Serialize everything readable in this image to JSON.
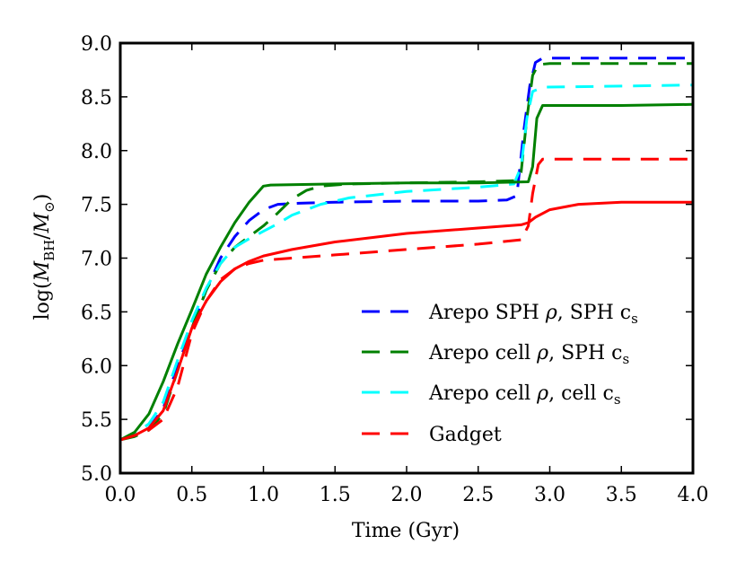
{
  "chart_data": {
    "type": "line",
    "xlabel": "Time (Gyr)",
    "ylabel_parts": {
      "pre": "log(",
      "m": "M",
      "sub1": "BH",
      "slash": "/",
      "m2": "M",
      "sub2": "⊙",
      "post": ")"
    },
    "xlim": [
      0.0,
      4.0
    ],
    "ylim": [
      5.0,
      9.0
    ],
    "xticks": [
      "0.0",
      "0.5",
      "1.0",
      "1.5",
      "2.0",
      "2.5",
      "3.0",
      "3.5",
      "4.0"
    ],
    "yticks": [
      "5.0",
      "5.5",
      "6.0",
      "6.5",
      "7.0",
      "7.5",
      "8.0",
      "8.5",
      "9.0"
    ],
    "grid": false,
    "legend_position": "lower-right",
    "legend": [
      {
        "pre": "Arepo SPH ",
        "rho": "ρ",
        "mid": ", SPH c",
        "sub": "s",
        "color": "#0000ff",
        "dash": true
      },
      {
        "pre": "Arepo cell ",
        "rho": "ρ",
        "mid": ", SPH c",
        "sub": "s",
        "color": "#008000",
        "dash": true
      },
      {
        "pre": "Arepo cell ",
        "rho": "ρ",
        "mid": ", cell c",
        "sub": "s",
        "color": "#00ffff",
        "dash": true
      },
      {
        "pre": "Gadget",
        "rho": "",
        "mid": "",
        "sub": "",
        "color": "#ff0000",
        "dash": true
      }
    ],
    "series": [
      {
        "color": "#0000ff",
        "style": "dashed",
        "points": [
          [
            0,
            5.31
          ],
          [
            0.1,
            5.35
          ],
          [
            0.2,
            5.42
          ],
          [
            0.3,
            5.6
          ],
          [
            0.4,
            6.0
          ],
          [
            0.5,
            6.35
          ],
          [
            0.6,
            6.7
          ],
          [
            0.7,
            7.0
          ],
          [
            0.8,
            7.2
          ],
          [
            0.9,
            7.35
          ],
          [
            1.0,
            7.45
          ],
          [
            1.1,
            7.5
          ],
          [
            1.25,
            7.51
          ],
          [
            1.5,
            7.52
          ],
          [
            2.0,
            7.53
          ],
          [
            2.5,
            7.53
          ],
          [
            2.7,
            7.54
          ],
          [
            2.77,
            7.58
          ],
          [
            2.82,
            8.2
          ],
          [
            2.86,
            8.6
          ],
          [
            2.9,
            8.82
          ],
          [
            2.95,
            8.86
          ],
          [
            3.5,
            8.86
          ],
          [
            4.0,
            8.86
          ]
        ]
      },
      {
        "color": "#008000",
        "style": "dashed",
        "points": [
          [
            0,
            5.31
          ],
          [
            0.1,
            5.34
          ],
          [
            0.2,
            5.4
          ],
          [
            0.3,
            5.55
          ],
          [
            0.4,
            5.95
          ],
          [
            0.5,
            6.35
          ],
          [
            0.6,
            6.7
          ],
          [
            0.7,
            6.95
          ],
          [
            0.8,
            7.1
          ],
          [
            0.9,
            7.2
          ],
          [
            1.0,
            7.3
          ],
          [
            1.1,
            7.42
          ],
          [
            1.2,
            7.55
          ],
          [
            1.3,
            7.63
          ],
          [
            1.4,
            7.67
          ],
          [
            1.6,
            7.69
          ],
          [
            2.0,
            7.7
          ],
          [
            2.5,
            7.71
          ],
          [
            2.75,
            7.72
          ],
          [
            2.8,
            7.8
          ],
          [
            2.84,
            8.3
          ],
          [
            2.88,
            8.7
          ],
          [
            2.92,
            8.8
          ],
          [
            3.0,
            8.81
          ],
          [
            4.0,
            8.81
          ]
        ]
      },
      {
        "color": "#00ffff",
        "style": "dashed",
        "points": [
          [
            0,
            5.31
          ],
          [
            0.1,
            5.36
          ],
          [
            0.2,
            5.46
          ],
          [
            0.3,
            5.66
          ],
          [
            0.4,
            6.05
          ],
          [
            0.5,
            6.42
          ],
          [
            0.6,
            6.72
          ],
          [
            0.7,
            6.95
          ],
          [
            0.8,
            7.1
          ],
          [
            0.9,
            7.18
          ],
          [
            1.0,
            7.25
          ],
          [
            1.1,
            7.32
          ],
          [
            1.2,
            7.4
          ],
          [
            1.3,
            7.45
          ],
          [
            1.4,
            7.5
          ],
          [
            1.6,
            7.56
          ],
          [
            2.0,
            7.62
          ],
          [
            2.5,
            7.66
          ],
          [
            2.75,
            7.69
          ],
          [
            2.8,
            7.85
          ],
          [
            2.84,
            8.3
          ],
          [
            2.88,
            8.55
          ],
          [
            2.95,
            8.59
          ],
          [
            3.5,
            8.6
          ],
          [
            4.0,
            8.61
          ]
        ]
      },
      {
        "color": "#ff0000",
        "style": "dashed",
        "points": [
          [
            0,
            5.31
          ],
          [
            0.1,
            5.35
          ],
          [
            0.2,
            5.4
          ],
          [
            0.3,
            5.5
          ],
          [
            0.4,
            5.8
          ],
          [
            0.5,
            6.3
          ],
          [
            0.6,
            6.6
          ],
          [
            0.7,
            6.8
          ],
          [
            0.8,
            6.9
          ],
          [
            0.9,
            6.95
          ],
          [
            1.0,
            6.98
          ],
          [
            1.5,
            7.03
          ],
          [
            2.0,
            7.08
          ],
          [
            2.5,
            7.13
          ],
          [
            2.8,
            7.17
          ],
          [
            2.85,
            7.3
          ],
          [
            2.88,
            7.6
          ],
          [
            2.92,
            7.87
          ],
          [
            2.95,
            7.92
          ],
          [
            3.5,
            7.92
          ],
          [
            4.0,
            7.92
          ]
        ]
      },
      {
        "color": "#008000",
        "style": "solid",
        "points": [
          [
            0,
            5.31
          ],
          [
            0.1,
            5.38
          ],
          [
            0.2,
            5.55
          ],
          [
            0.3,
            5.85
          ],
          [
            0.4,
            6.2
          ],
          [
            0.5,
            6.52
          ],
          [
            0.6,
            6.85
          ],
          [
            0.7,
            7.1
          ],
          [
            0.8,
            7.33
          ],
          [
            0.9,
            7.52
          ],
          [
            1.0,
            7.67
          ],
          [
            1.05,
            7.68
          ],
          [
            1.5,
            7.69
          ],
          [
            2.0,
            7.7
          ],
          [
            2.5,
            7.7
          ],
          [
            2.85,
            7.71
          ],
          [
            2.88,
            7.85
          ],
          [
            2.91,
            8.3
          ],
          [
            2.95,
            8.42
          ],
          [
            3.5,
            8.42
          ],
          [
            4.0,
            8.43
          ]
        ]
      },
      {
        "color": "#ff0000",
        "style": "solid",
        "points": [
          [
            0,
            5.31
          ],
          [
            0.1,
            5.35
          ],
          [
            0.2,
            5.42
          ],
          [
            0.3,
            5.58
          ],
          [
            0.4,
            5.95
          ],
          [
            0.5,
            6.35
          ],
          [
            0.6,
            6.6
          ],
          [
            0.7,
            6.78
          ],
          [
            0.8,
            6.9
          ],
          [
            0.9,
            6.97
          ],
          [
            1.0,
            7.02
          ],
          [
            1.2,
            7.08
          ],
          [
            1.5,
            7.15
          ],
          [
            2.0,
            7.23
          ],
          [
            2.5,
            7.28
          ],
          [
            2.8,
            7.31
          ],
          [
            2.85,
            7.33
          ],
          [
            2.9,
            7.38
          ],
          [
            3.0,
            7.45
          ],
          [
            3.2,
            7.5
          ],
          [
            3.5,
            7.52
          ],
          [
            4.0,
            7.52
          ]
        ]
      }
    ]
  }
}
